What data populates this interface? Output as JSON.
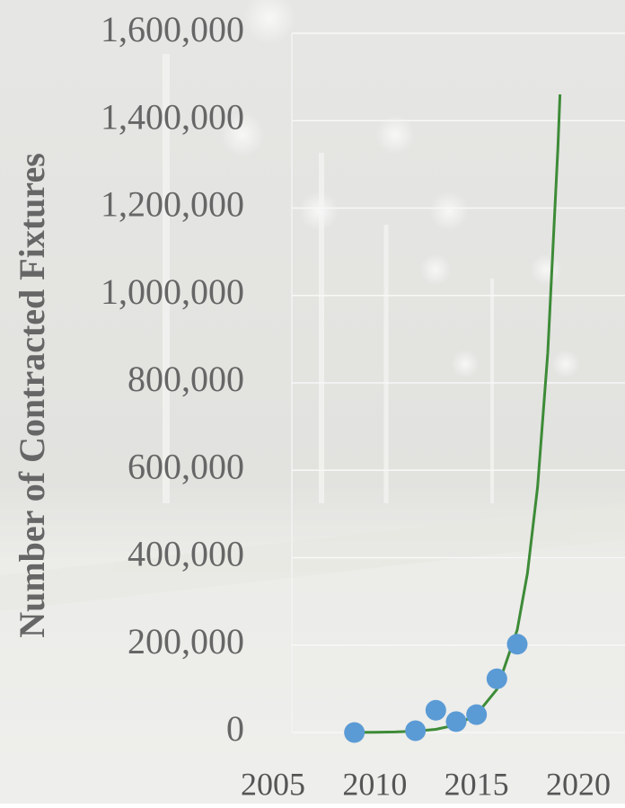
{
  "chart_data": {
    "type": "scatter",
    "y_label": "Number of Contracted Fixtures",
    "xlim": [
      2005,
      2020
    ],
    "xticks": [
      2005,
      2010,
      2015,
      2020
    ],
    "ylim": [
      0,
      1600000
    ],
    "yticks": [
      0,
      {
        "value": 200000,
        "label": "200,000"
      },
      {
        "value": 400000,
        "label": "400,000"
      },
      {
        "value": 600000,
        "label": "600,000"
      },
      {
        "value": 800000,
        "label": "800,000"
      },
      {
        "value": 1000000,
        "label": "1,000,000"
      },
      {
        "value": 1200000,
        "label": "1,200,000"
      },
      {
        "value": 1400000,
        "label": "1,400,000"
      },
      {
        "value": 1600000,
        "label": "1,600,000"
      }
    ],
    "grid": true,
    "series": [
      {
        "kind": "points",
        "color": "#5b9bd5",
        "x": [
          2009,
          2012,
          2013,
          2014,
          2015,
          2016,
          2017
        ],
        "values": [
          0,
          4000,
          51000,
          25000,
          41000,
          123000,
          202000
        ]
      },
      {
        "kind": "trendline",
        "color": "#3d8b37",
        "x": [
          2009,
          2010,
          2011,
          2012,
          2013,
          2014,
          2015,
          2016,
          2017,
          2017.5,
          2018,
          2018.5,
          2019,
          2019.1
        ],
        "values": [
          223,
          533,
          1270,
          3040,
          7250,
          17300,
          41300,
          98600,
          235000,
          364000,
          562000,
          869000,
          1340000,
          1460000
        ]
      }
    ]
  }
}
